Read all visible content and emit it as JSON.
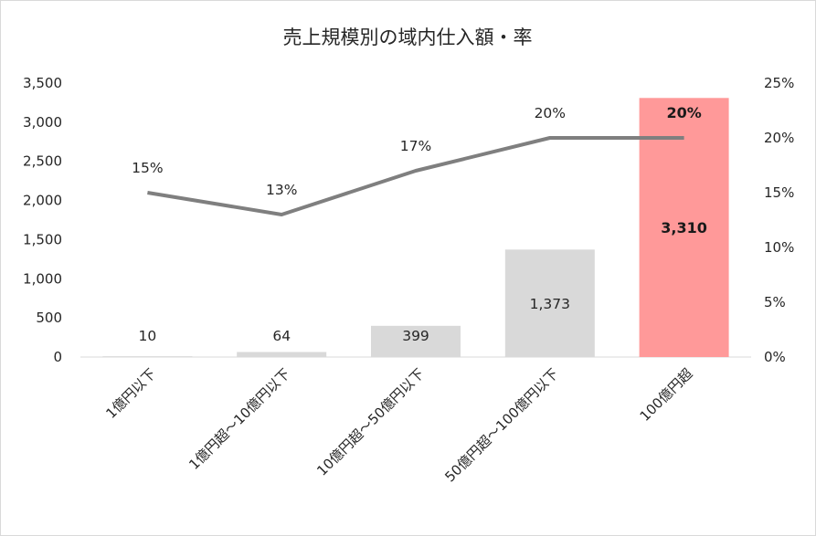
{
  "chart_data": {
    "type": "bar+line",
    "title": "売上規模別の域内仕入額・率",
    "categories": [
      "1億円以下",
      "1億円超～10億円以下",
      "10億円超～50億円以下",
      "50億円超～100億円以下",
      "100億円超"
    ],
    "bar_series": {
      "values": [
        10,
        64,
        399,
        1373,
        3310
      ],
      "value_labels": [
        "10",
        "64",
        "399",
        "1,373",
        "3,310"
      ],
      "color": "#d9d9d9",
      "highlight_color": "#ff9999",
      "highlight_index": 4
    },
    "line_series": {
      "values": [
        15,
        13,
        17,
        20,
        20
      ],
      "value_labels": [
        "15%",
        "13%",
        "17%",
        "20%",
        "20%"
      ],
      "color": "#7f7f7f"
    },
    "y_left": {
      "ticks": [
        "0",
        "500",
        "1,000",
        "1,500",
        "2,000",
        "2,500",
        "3,000",
        "3,500"
      ],
      "ylim": [
        0,
        3500
      ]
    },
    "y_right": {
      "ticks": [
        "0%",
        "5%",
        "10%",
        "15%",
        "20%",
        "25%"
      ],
      "ylim": [
        0,
        25
      ]
    },
    "grid": false,
    "legend": "none"
  }
}
